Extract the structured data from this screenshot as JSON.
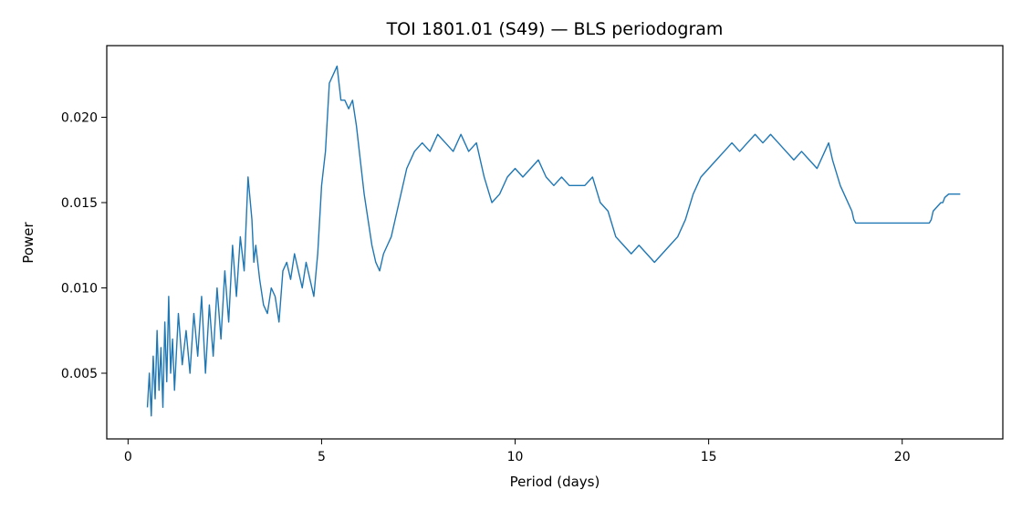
{
  "chart_data": {
    "type": "line",
    "title": "TOI 1801.01 (S49) — BLS periodogram",
    "xlabel": "Period (days)",
    "ylabel": "Power",
    "xlim": [
      -0.55,
      22.6
    ],
    "ylim": [
      0.00115,
      0.0242
    ],
    "xticks": [
      0,
      5,
      10,
      15,
      20
    ],
    "xtick_labels": [
      "0",
      "5",
      "10",
      "15",
      "20"
    ],
    "yticks": [
      0.005,
      0.01,
      0.015,
      0.02
    ],
    "ytick_labels": [
      "0.005",
      "0.010",
      "0.015",
      "0.020"
    ],
    "grid": false,
    "legend": "none",
    "line_color": "#1f77b4",
    "series": [
      {
        "x": [
          0.5,
          0.55,
          0.6,
          0.65,
          0.7,
          0.75,
          0.8,
          0.85,
          0.9,
          0.95,
          1.0,
          1.05,
          1.1,
          1.15,
          1.2,
          1.3,
          1.4,
          1.5,
          1.6,
          1.7,
          1.8,
          1.9,
          2.0,
          2.1,
          2.2,
          2.3,
          2.4,
          2.5,
          2.6,
          2.7,
          2.8,
          2.9,
          3.0,
          3.1,
          3.2,
          3.25,
          3.3,
          3.4,
          3.5,
          3.6,
          3.7,
          3.8,
          3.9,
          4.0,
          4.1,
          4.2,
          4.3,
          4.4,
          4.5,
          4.6,
          4.7,
          4.8,
          4.9,
          5.0,
          5.1,
          5.2,
          5.3,
          5.4,
          5.5,
          5.6,
          5.7,
          5.8,
          5.9,
          6.0,
          6.1,
          6.2,
          6.3,
          6.4,
          6.5,
          6.6,
          6.7,
          6.8,
          6.9,
          7.0,
          7.2,
          7.4,
          7.6,
          7.8,
          8.0,
          8.2,
          8.4,
          8.6,
          8.8,
          9.0,
          9.2,
          9.4,
          9.6,
          9.8,
          10.0,
          10.2,
          10.4,
          10.6,
          10.8,
          11.0,
          11.2,
          11.4,
          11.6,
          11.8,
          12.0,
          12.2,
          12.4,
          12.6,
          12.8,
          13.0,
          13.2,
          13.4,
          13.6,
          13.8,
          14.0,
          14.2,
          14.4,
          14.6,
          14.8,
          15.0,
          15.2,
          15.4,
          15.6,
          15.8,
          16.0,
          16.2,
          16.4,
          16.6,
          16.8,
          17.0,
          17.2,
          17.4,
          17.6,
          17.8,
          18.0,
          18.1,
          18.2,
          18.4,
          18.5,
          18.6,
          18.7,
          18.75,
          18.8,
          19.5,
          20.0,
          20.5,
          20.7,
          20.75,
          20.8,
          21.0,
          21.05,
          21.1,
          21.2,
          21.5
        ],
        "y": [
          0.003,
          0.005,
          0.0025,
          0.006,
          0.0035,
          0.0075,
          0.004,
          0.0065,
          0.003,
          0.008,
          0.0045,
          0.0095,
          0.005,
          0.007,
          0.004,
          0.0085,
          0.0055,
          0.0075,
          0.005,
          0.0085,
          0.006,
          0.0095,
          0.005,
          0.009,
          0.006,
          0.01,
          0.007,
          0.011,
          0.008,
          0.0125,
          0.0095,
          0.013,
          0.011,
          0.0165,
          0.014,
          0.0115,
          0.0125,
          0.0105,
          0.009,
          0.0085,
          0.01,
          0.0095,
          0.008,
          0.011,
          0.0115,
          0.0105,
          0.012,
          0.011,
          0.01,
          0.0115,
          0.0105,
          0.0095,
          0.012,
          0.016,
          0.018,
          0.022,
          0.0225,
          0.023,
          0.021,
          0.021,
          0.0205,
          0.021,
          0.0195,
          0.0175,
          0.0155,
          0.014,
          0.0125,
          0.0115,
          0.011,
          0.012,
          0.0125,
          0.013,
          0.014,
          0.015,
          0.017,
          0.018,
          0.0185,
          0.018,
          0.019,
          0.0185,
          0.018,
          0.019,
          0.018,
          0.0185,
          0.0165,
          0.015,
          0.0155,
          0.0165,
          0.017,
          0.0165,
          0.017,
          0.0175,
          0.0165,
          0.016,
          0.0165,
          0.016,
          0.016,
          0.016,
          0.0165,
          0.015,
          0.0145,
          0.013,
          0.0125,
          0.012,
          0.0125,
          0.012,
          0.0115,
          0.012,
          0.0125,
          0.013,
          0.014,
          0.0155,
          0.0165,
          0.017,
          0.0175,
          0.018,
          0.0185,
          0.018,
          0.0185,
          0.019,
          0.0185,
          0.019,
          0.0185,
          0.018,
          0.0175,
          0.018,
          0.0175,
          0.017,
          0.018,
          0.0185,
          0.0175,
          0.016,
          0.0155,
          0.015,
          0.0145,
          0.014,
          0.0138,
          0.0138,
          0.0138,
          0.0138,
          0.0138,
          0.014,
          0.0145,
          0.015,
          0.015,
          0.0153,
          0.0155,
          0.0155
        ]
      }
    ]
  }
}
